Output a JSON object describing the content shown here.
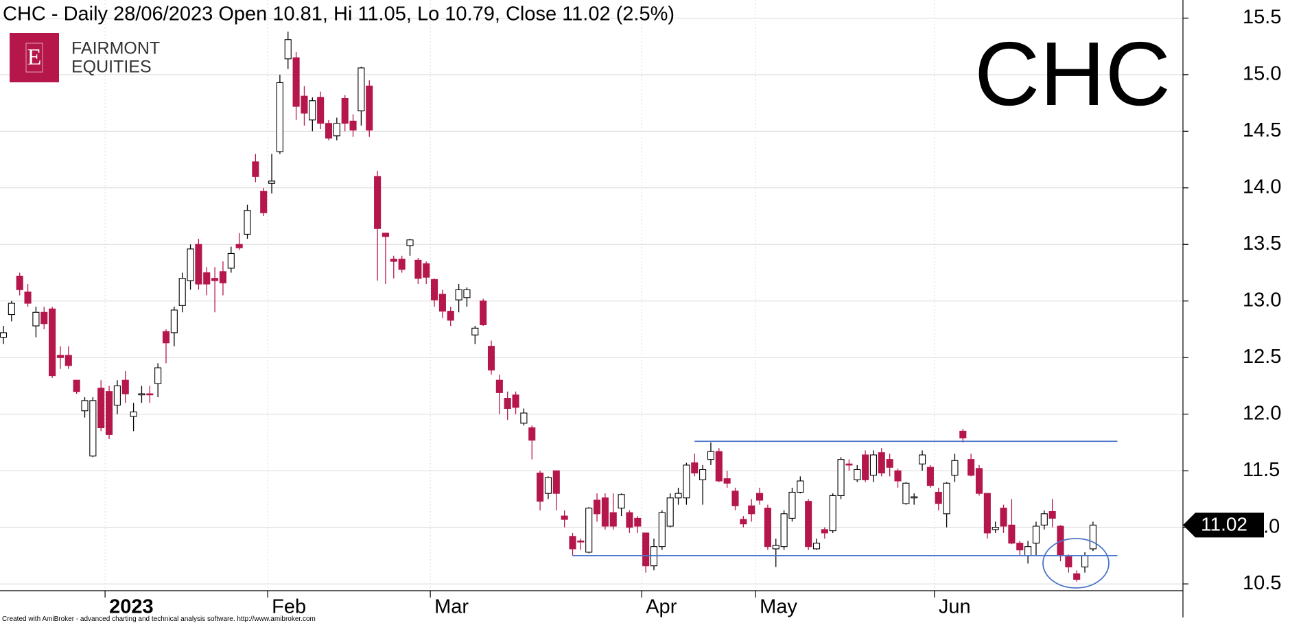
{
  "chart_data": {
    "type": "candlestick",
    "title": "CHC - Daily 28/06/2023 Open 10.81, Hi 11.05, Lo 10.79, Close 11.02 (2.5%)",
    "ticker": "CHC",
    "footer": "Created with AmiBroker - advanced charting and technical analysis software. http://www.amibroker.com",
    "categories": [
      null,
      null,
      null,
      null,
      null,
      null,
      null,
      null,
      null,
      null,
      null,
      null,
      null,
      "2023",
      null,
      null,
      null,
      null,
      null,
      null,
      null,
      null,
      null,
      null,
      null,
      null,
      null,
      null,
      null,
      null,
      null,
      null,
      null,
      "Feb",
      null,
      null,
      null,
      null,
      null,
      null,
      null,
      null,
      null,
      null,
      null,
      null,
      null,
      null,
      null,
      null,
      null,
      null,
      null,
      "Mar",
      null,
      null,
      null,
      null,
      null,
      null,
      null,
      null,
      null,
      null,
      null,
      null,
      null,
      null,
      null,
      null,
      null,
      null,
      null,
      null,
      null,
      null,
      null,
      null,
      null,
      "Apr",
      null,
      null,
      null,
      null,
      null,
      null,
      null,
      null,
      null,
      null,
      null,
      null,
      null,
      "May",
      null,
      null,
      null,
      null,
      null,
      null,
      null,
      null,
      null,
      null,
      null,
      null,
      null,
      null,
      null,
      null,
      null,
      null,
      null,
      null,
      null,
      "Jun",
      null,
      null,
      null,
      null,
      null,
      null,
      null,
      null,
      null,
      null,
      null,
      null,
      null,
      null,
      null,
      null,
      null,
      null,
      null
    ],
    "open": [
      12.68,
      12.88,
      13.22,
      13.08,
      12.78,
      12.9,
      12.93,
      12.52,
      12.52,
      12.3,
      12.03,
      11.63,
      12.23,
      12.2,
      12.08,
      12.3,
      11.98,
      12.17,
      12.18,
      12.27,
      12.73,
      12.72,
      12.96,
      13.18,
      13.5,
      13.25,
      13.2,
      13.26,
      13.29,
      13.5,
      13.59,
      14.23,
      13.97,
      14.04,
      14.32,
      15.14,
      15.15,
      14.81,
      14.6,
      14.8,
      14.57,
      14.46,
      14.79,
      14.59,
      14.68,
      14.9,
      14.1,
      13.6,
      13.37,
      13.37,
      13.49,
      13.36,
      13.33,
      13.19,
      13.06,
      12.91,
      13.01,
      13.03,
      12.7,
      13.0,
      12.6,
      12.3,
      12.14,
      12.17,
      11.92,
      11.88,
      11.48,
      11.3,
      11.5,
      11.1,
      10.92,
      10.88,
      10.78,
      11.24,
      11.26,
      11.13,
      11.17,
      11.13,
      11.08,
      10.95,
      10.66,
      10.83,
      11.01,
      11.26,
      11.26,
      11.57,
      11.42,
      11.6,
      11.67,
      11.43,
      11.32,
      11.07,
      11.19,
      11.3,
      11.17,
      10.81,
      10.83,
      11.08,
      11.31,
      11.23,
      10.81,
      10.98,
      10.97,
      11.28,
      11.56,
      11.42,
      11.64,
      11.46,
      11.66,
      11.6,
      11.5,
      11.21,
      11.26,
      11.56,
      11.53,
      11.31,
      11.12,
      11.46,
      11.85,
      11.6,
      11.52,
      11.3,
      10.98,
      11.17,
      11.02,
      10.86,
      10.75,
      10.86,
      11.02,
      11.14,
      11.01,
      10.74,
      10.59,
      10.65,
      10.81
    ],
    "high": [
      12.78,
      13.0,
      13.25,
      13.15,
      12.95,
      12.95,
      12.95,
      12.6,
      12.6,
      12.3,
      12.15,
      12.15,
      12.3,
      12.25,
      12.3,
      12.38,
      12.1,
      12.25,
      12.25,
      12.45,
      12.75,
      12.95,
      13.25,
      13.5,
      13.55,
      13.3,
      13.3,
      13.35,
      13.48,
      13.6,
      13.85,
      14.3,
      14.0,
      14.3,
      15.0,
      15.38,
      15.2,
      14.9,
      14.8,
      14.85,
      14.6,
      14.62,
      14.82,
      14.65,
      15.07,
      14.95,
      14.15,
      13.6,
      13.4,
      13.4,
      13.55,
      13.38,
      13.35,
      13.2,
      13.1,
      12.95,
      13.15,
      13.12,
      12.78,
      13.02,
      12.65,
      12.35,
      12.2,
      12.2,
      12.05,
      11.9,
      11.5,
      11.45,
      11.5,
      11.15,
      10.95,
      10.9,
      11.18,
      11.3,
      11.3,
      11.3,
      11.3,
      11.15,
      11.1,
      10.95,
      10.9,
      11.15,
      11.3,
      11.35,
      11.57,
      11.65,
      11.55,
      11.75,
      11.7,
      11.5,
      11.35,
      11.1,
      11.25,
      11.35,
      11.2,
      10.9,
      11.15,
      11.35,
      11.45,
      11.25,
      10.9,
      11.0,
      11.3,
      11.62,
      11.6,
      11.55,
      11.68,
      11.68,
      11.7,
      11.65,
      11.52,
      11.4,
      11.3,
      11.68,
      11.55,
      11.35,
      11.4,
      11.65,
      11.87,
      11.65,
      11.55,
      11.3,
      11.05,
      11.2,
      11.25,
      10.88,
      10.88,
      11.05,
      11.15,
      11.25,
      11.02,
      10.76,
      10.62,
      10.78,
      11.05
    ],
    "low": [
      12.62,
      12.82,
      13.05,
      12.95,
      12.68,
      12.75,
      12.32,
      12.4,
      12.4,
      12.18,
      11.97,
      11.62,
      11.85,
      11.78,
      12.0,
      12.1,
      11.85,
      12.1,
      12.1,
      12.15,
      12.45,
      12.6,
      12.9,
      13.1,
      13.1,
      13.05,
      12.9,
      13.05,
      13.25,
      13.45,
      13.55,
      14.05,
      13.75,
      13.95,
      14.3,
      15.05,
      14.6,
      14.55,
      14.5,
      14.52,
      14.42,
      14.42,
      14.5,
      14.45,
      14.55,
      14.45,
      13.18,
      13.15,
      13.2,
      13.25,
      13.4,
      13.15,
      13.15,
      12.95,
      12.85,
      12.78,
      12.9,
      12.95,
      12.62,
      12.78,
      12.35,
      12.0,
      11.95,
      12.0,
      11.9,
      11.6,
      11.15,
      11.25,
      11.15,
      11.0,
      10.75,
      10.8,
      10.77,
      11.05,
      10.98,
      10.98,
      11.1,
      10.95,
      10.95,
      10.6,
      10.62,
      10.8,
      11.0,
      11.2,
      11.2,
      11.45,
      11.2,
      11.55,
      11.4,
      11.35,
      11.15,
      11.0,
      11.05,
      11.2,
      10.8,
      10.65,
      10.8,
      11.05,
      11.3,
      10.8,
      10.8,
      10.9,
      10.95,
      11.25,
      11.5,
      11.4,
      11.4,
      11.4,
      11.45,
      11.45,
      11.35,
      11.2,
      11.2,
      11.5,
      11.35,
      11.15,
      11.0,
      11.4,
      11.75,
      11.45,
      11.28,
      10.9,
      10.95,
      10.95,
      10.85,
      10.75,
      10.68,
      10.75,
      10.98,
      11.0,
      10.7,
      10.6,
      10.52,
      10.6,
      10.79
    ],
    "close": [
      12.72,
      12.98,
      13.1,
      12.98,
      12.9,
      12.8,
      12.34,
      12.5,
      12.43,
      12.2,
      12.12,
      12.12,
      11.88,
      11.82,
      12.25,
      12.18,
      12.02,
      12.18,
      12.17,
      12.41,
      12.63,
      12.92,
      13.2,
      13.46,
      13.15,
      13.15,
      13.18,
      13.16,
      13.42,
      13.47,
      13.8,
      14.1,
      13.78,
      14.06,
      14.93,
      15.31,
      14.72,
      14.66,
      14.77,
      14.57,
      14.44,
      14.57,
      14.57,
      14.51,
      15.06,
      14.51,
      13.64,
      13.57,
      13.35,
      13.28,
      13.54,
      13.2,
      13.21,
      13.01,
      12.91,
      12.83,
      13.1,
      13.1,
      12.76,
      12.79,
      12.39,
      12.19,
      12.05,
      12.06,
      12.01,
      11.77,
      11.23,
      11.44,
      11.3,
      11.07,
      10.81,
      10.87,
      11.17,
      11.12,
      11.01,
      11.01,
      11.29,
      11.0,
      11.01,
      10.66,
      10.83,
      11.13,
      11.26,
      11.3,
      11.55,
      11.48,
      11.51,
      11.67,
      11.41,
      11.39,
      11.19,
      11.03,
      11.12,
      11.24,
      10.83,
      10.84,
      11.12,
      11.31,
      11.41,
      10.83,
      10.86,
      10.95,
      11.28,
      11.6,
      11.55,
      11.51,
      11.42,
      11.64,
      11.48,
      11.53,
      11.41,
      11.39,
      11.27,
      11.64,
      11.37,
      11.21,
      11.39,
      11.59,
      11.79,
      11.46,
      11.3,
      10.95,
      11.0,
      11.01,
      10.86,
      10.8,
      10.83,
      11.01,
      11.12,
      11.08,
      10.75,
      10.65,
      10.54,
      10.75,
      11.02
    ],
    "up_color": "#ffffff",
    "down_color": "#b5174b",
    "line_color": "#4a74c9",
    "hlines": [
      {
        "value": 11.76,
        "from": 85,
        "to": 137
      },
      {
        "value": 10.75,
        "from": 70,
        "to": 137
      }
    ],
    "ylim": [
      10.44,
      15.66
    ],
    "yticks": [
      10.5,
      {
        "value": 11,
        "label": "11.0"
      },
      11.5,
      {
        "value": 12,
        "label": "12.0"
      },
      12.5,
      {
        "value": 13,
        "label": "13.0"
      },
      13.5,
      {
        "value": 14,
        "label": "14.0"
      },
      14.5,
      {
        "value": 15,
        "label": "15.0"
      },
      15.5
    ],
    "grid": true
  },
  "branding": {
    "letter": "E",
    "lines": [
      "FAIRMONT",
      "EQUITIES"
    ],
    "color": "#b5174b"
  }
}
